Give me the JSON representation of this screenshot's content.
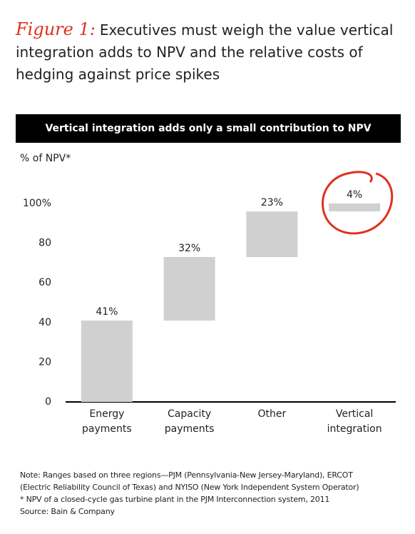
{
  "chart_data": {
    "type": "waterfall",
    "figure_label": "Figure 1:",
    "title": "Executives must weigh the value vertical integration adds to NPV and the relative costs of hedging against price spikes",
    "subtitle": "Vertical integration adds only a small contribution to NPV",
    "y_label": "% of NPV*",
    "categories": [
      "Energy payments",
      "Capacity payments",
      "Other",
      "Vertical integration"
    ],
    "values": [
      41,
      32,
      23,
      4
    ],
    "value_labels": [
      "41%",
      "32%",
      "23%",
      "4%"
    ],
    "color": "#d0d0d0",
    "highlight_color": "#e0301e",
    "ylim": [
      0,
      100
    ],
    "yticks": [
      0,
      20,
      40,
      60,
      80,
      {
        "value": 100,
        "label": "100%"
      }
    ],
    "grid": false,
    "notes": [
      "Note: Ranges based on three regions—PJM (Pennsylvania-New Jersey-Maryland), ERCOT",
      "(Electric Reliability Council of Texas) and NYISO (New York Independent System Operator)",
      "* NPV of a closed-cycle gas turbine plant in the PJM Interconnection system, 2011",
      "Source: Bain & Company"
    ]
  }
}
